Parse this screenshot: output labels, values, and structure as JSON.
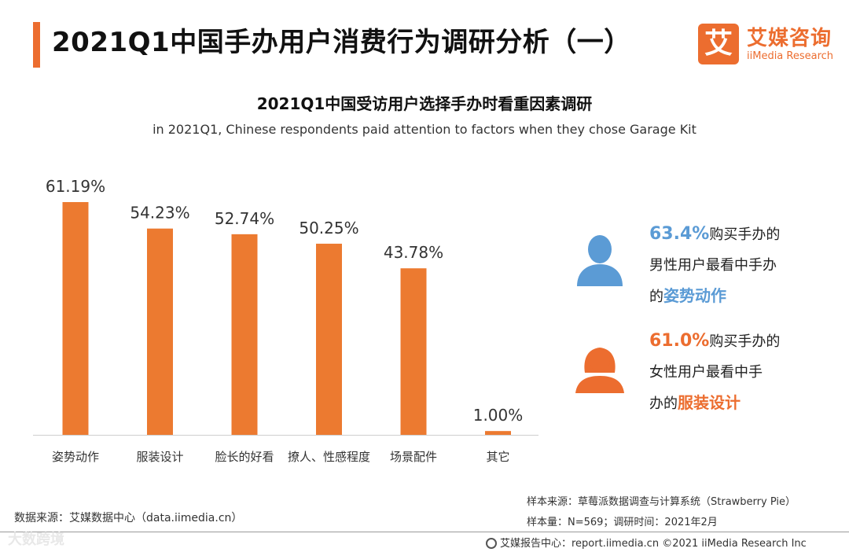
{
  "header": {
    "title": "2021Q1中国手办用户消费行为调研分析（一）",
    "brand_logo_char": "艾",
    "brand_name": "艾媒咨询",
    "brand_en": "iiMedia Research"
  },
  "colors": {
    "accent": "#ec6d2f",
    "bar": "#ec7a30",
    "male": "#5b9bd5",
    "female": "#ec6d2f"
  },
  "chart_data": {
    "type": "bar",
    "title": "2021Q1中国受访用户选择手办时看重因素调研",
    "subtitle": "in 2021Q1, Chinese respondents paid attention to factors when they chose Garage Kit",
    "categories": [
      "姿势动作",
      "服装设计",
      "脸长的好看",
      "撩人、性感程度",
      "场景配件",
      "其它"
    ],
    "values": [
      61.19,
      54.23,
      52.74,
      50.25,
      43.78,
      1.0
    ],
    "value_labels": [
      "61.19%",
      "54.23%",
      "52.74%",
      "50.25%",
      "43.78%",
      "1.00%"
    ],
    "xlabel": "",
    "ylabel": "",
    "ylim": [
      0,
      61.19
    ],
    "grid": false,
    "legend": "none"
  },
  "insights": [
    {
      "icon": "male-user-icon",
      "pct": "63.4%",
      "line1_rest": "购买手办的",
      "line2": "男性用户最看中手办",
      "line3_prefix": "的",
      "highlight": "姿势动作"
    },
    {
      "icon": "female-user-icon",
      "pct": "61.0%",
      "line1_rest": "购买手办的",
      "line2": "女性用户最看中手",
      "line3_prefix": "办的",
      "highlight": "服装设计"
    }
  ],
  "sources": {
    "data_source": "数据来源：艾媒数据中心（data.iimedia.cn）",
    "sample_source": "样本来源：草莓派数据调查与计算系统（Strawberry Pie）",
    "sample_info": "样本量：N=569；调研时间：2021年2月"
  },
  "footer": {
    "text": "艾媒报告中心：report.iimedia.cn  ©2021  iiMedia Research  Inc"
  },
  "watermark": "大数跨境"
}
